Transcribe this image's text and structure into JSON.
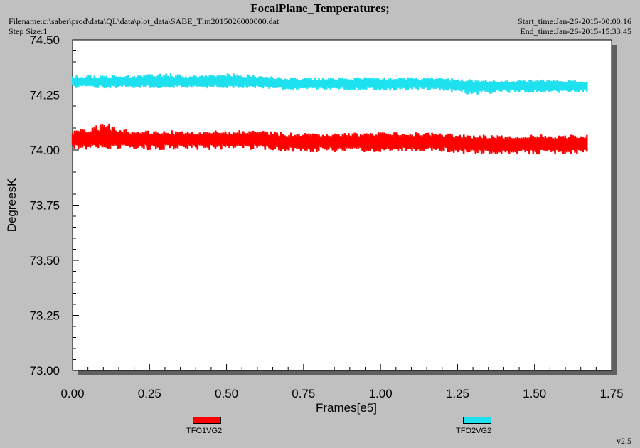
{
  "header": {
    "title": "FocalPlane_Temperatures;",
    "filename": "Filename:c:\\saber\\prod\\data\\QL\\data\\plot_data\\SABE_Tlm2015026000000.dat",
    "step_size": "Step Size:1",
    "start_time": "Start_time:Jan-26-2015-00:00:16",
    "end_time": "End_time:Jan-26-2015-15:33:45"
  },
  "version": "v2.5",
  "colors": {
    "background": "#c0c0c0",
    "plot_area": "#ffffff",
    "series1": "#ff0000",
    "series2": "#1ee1f0"
  },
  "chart_data": {
    "type": "line",
    "title": "FocalPlane_Temperatures;",
    "xlabel": "Frames[e5]",
    "ylabel": "DegreesK",
    "xlim": [
      0.0,
      1.75
    ],
    "ylim": [
      73.0,
      74.5
    ],
    "x_ticks": [
      "0.00",
      "0.25",
      "0.50",
      "0.75",
      "1.00",
      "1.25",
      "1.50",
      "1.75"
    ],
    "y_ticks": [
      "73.00",
      "73.25",
      "73.50",
      "73.75",
      "74.00",
      "74.25",
      "74.50"
    ],
    "grid": false,
    "legend_position": "bottom",
    "series": [
      {
        "name": "TFO1VG2",
        "color": "#ff0000",
        "x": [
          0.0,
          0.1,
          0.2,
          0.3,
          0.4,
          0.5,
          0.6,
          0.7,
          0.8,
          0.9,
          1.0,
          1.1,
          1.2,
          1.3,
          1.4,
          1.5,
          1.6,
          1.67
        ],
        "mean": [
          74.05,
          74.05,
          74.05,
          74.05,
          74.05,
          74.05,
          74.05,
          74.04,
          74.04,
          74.04,
          74.04,
          74.04,
          74.04,
          74.03,
          74.03,
          74.03,
          74.03,
          74.03
        ],
        "min": [
          74.0,
          74.0,
          74.0,
          74.0,
          74.0,
          74.0,
          74.0,
          73.99,
          73.99,
          73.99,
          73.99,
          73.99,
          73.99,
          73.98,
          73.98,
          73.98,
          73.98,
          73.98
        ],
        "max": [
          74.09,
          74.12,
          74.09,
          74.09,
          74.09,
          74.09,
          74.09,
          74.08,
          74.08,
          74.08,
          74.08,
          74.08,
          74.08,
          74.07,
          74.07,
          74.07,
          74.07,
          74.07
        ]
      },
      {
        "name": "TFO2VG2",
        "color": "#1ee1f0",
        "x": [
          0.0,
          0.1,
          0.2,
          0.3,
          0.4,
          0.5,
          0.6,
          0.7,
          0.8,
          0.9,
          1.0,
          1.1,
          1.2,
          1.3,
          1.4,
          1.5,
          1.6,
          1.67
        ],
        "mean": [
          74.31,
          74.31,
          74.31,
          74.31,
          74.31,
          74.31,
          74.31,
          74.3,
          74.3,
          74.3,
          74.3,
          74.3,
          74.3,
          74.29,
          74.29,
          74.29,
          74.29,
          74.29
        ],
        "min": [
          74.28,
          74.28,
          74.28,
          74.28,
          74.28,
          74.28,
          74.28,
          74.27,
          74.27,
          74.27,
          74.27,
          74.27,
          74.27,
          74.25,
          74.26,
          74.26,
          74.26,
          74.26
        ],
        "max": [
          74.34,
          74.34,
          74.34,
          74.35,
          74.34,
          74.35,
          74.34,
          74.33,
          74.33,
          74.33,
          74.33,
          74.33,
          74.33,
          74.32,
          74.32,
          74.32,
          74.32,
          74.32
        ]
      }
    ]
  }
}
